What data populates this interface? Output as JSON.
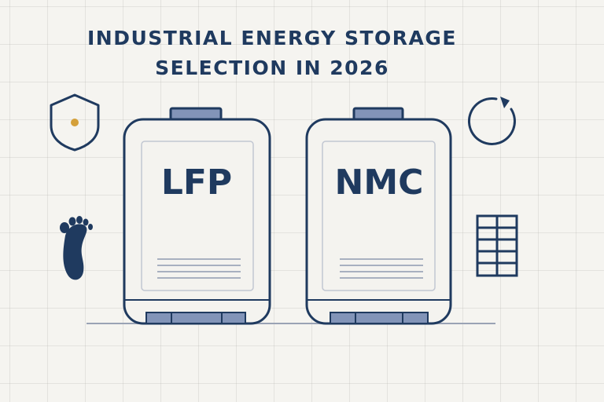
{
  "title": {
    "line1": "INDUSTRIAL ENERGY STORAGE",
    "line2": "SELECTION IN 2026"
  },
  "batteries": [
    {
      "label": "LFP"
    },
    {
      "label": "NMC"
    }
  ],
  "icons": [
    "shield-icon",
    "footprint-icon",
    "cycle-icon",
    "grid-table-icon"
  ],
  "colors": {
    "background": "#f5f4f0",
    "ink": "#1f3a5f",
    "accent": "#d4a03a",
    "cap": "#8294b8"
  }
}
